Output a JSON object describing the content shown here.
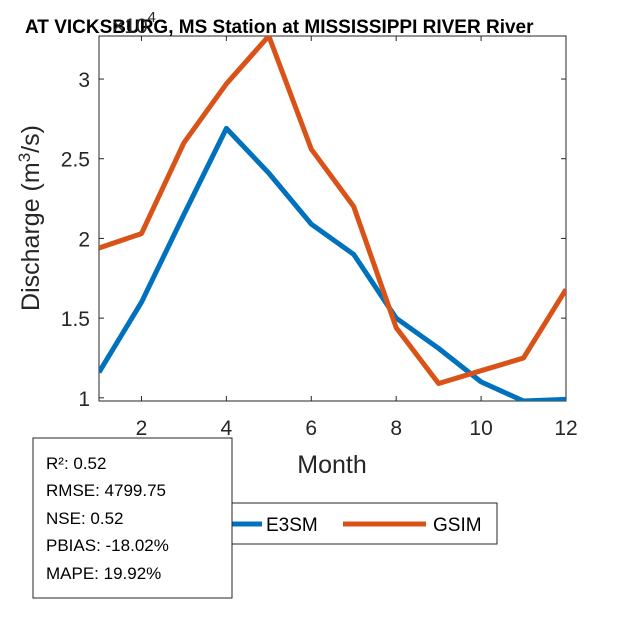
{
  "chart_data": {
    "type": "line",
    "title": "AT VICKSBURG, MS  Station at  MISSISSIPPI RIVER  River",
    "xlabel": "Month",
    "ylabel_main": "Discharge (m",
    "ylabel_sup": "3",
    "ylabel_end": "/s)",
    "y_exponent_base": "×10",
    "y_exponent_power": "4",
    "xlim": [
      1,
      12
    ],
    "ylim": [
      0.98,
      3.27
    ],
    "xticks": [
      2,
      4,
      6,
      8,
      10,
      12
    ],
    "yticks": [
      1,
      1.5,
      2,
      2.5,
      3
    ],
    "yticklabels": [
      "1",
      "1.5",
      "2",
      "2.5",
      "3"
    ],
    "x": [
      1,
      2,
      3,
      4,
      5,
      6,
      7,
      8,
      9,
      10,
      11,
      12
    ],
    "series": [
      {
        "name": "E3SM",
        "color": "#0072BD",
        "values": [
          1.16,
          1.6,
          2.15,
          2.69,
          2.41,
          2.09,
          1.9,
          1.5,
          1.31,
          1.1,
          0.98,
          0.99
        ]
      },
      {
        "name": "GSIM",
        "color": "#D95319",
        "values": [
          1.94,
          2.03,
          2.6,
          2.97,
          3.27,
          2.56,
          2.2,
          1.44,
          1.09,
          1.17,
          1.25,
          1.68
        ]
      }
    ]
  },
  "stats": {
    "r2": "R²: 0.52",
    "rmse": "RMSE: 4799.75",
    "nse": "NSE: 0.52",
    "pbias": "PBIAS: -18.02%",
    "mape": "MAPE: 19.92%"
  }
}
